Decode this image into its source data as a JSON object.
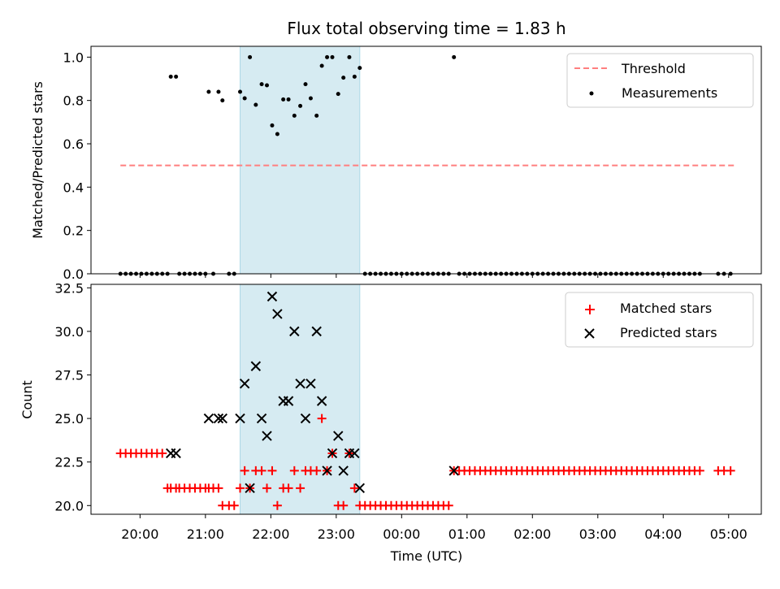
{
  "chart_data": [
    {
      "type": "scatter",
      "title": "Flux total observing time = 1.83 h",
      "xlabel": "",
      "ylabel": "Matched/Predicted stars",
      "xlim": [
        19.25,
        29.5
      ],
      "ylim": [
        0.0,
        1.05
      ],
      "yticks": [
        0.0,
        0.2,
        0.4,
        0.6,
        0.8,
        1.0
      ],
      "ytick_labels": [
        "0.0",
        "0.2",
        "0.4",
        "0.6",
        "0.8",
        "1.0"
      ],
      "shaded_span": [
        21.53,
        23.36
      ],
      "legend_position": "top-right",
      "threshold": {
        "name": "Threshold",
        "value": 0.5,
        "x_range": [
          19.7,
          29.1
        ],
        "color": "#ff7f7f"
      },
      "series": [
        {
          "name": "Measurements",
          "color": "#000000",
          "x": [
            19.7,
            19.78,
            19.86,
            19.94,
            20.02,
            20.1,
            20.18,
            20.26,
            20.34,
            20.42,
            20.47,
            20.55,
            20.6,
            20.68,
            20.76,
            20.84,
            20.92,
            21.0,
            21.05,
            21.12,
            21.2,
            21.26,
            21.36,
            21.44,
            21.53,
            21.6,
            21.68,
            21.77,
            21.86,
            21.94,
            22.02,
            22.1,
            22.19,
            22.27,
            22.36,
            22.45,
            22.53,
            22.61,
            22.7,
            22.78,
            22.86,
            22.94,
            23.03,
            23.11,
            23.2,
            23.28,
            23.36,
            23.44,
            23.52,
            23.6,
            23.68,
            23.76,
            23.84,
            23.92,
            24.0,
            24.08,
            24.16,
            24.24,
            24.32,
            24.4,
            24.48,
            24.56,
            24.64,
            24.72,
            24.8,
            24.88,
            24.96,
            25.04,
            25.12,
            25.2,
            25.28,
            25.36,
            25.44,
            25.52,
            25.6,
            25.68,
            25.76,
            25.84,
            25.92,
            26.0,
            26.08,
            26.16,
            26.24,
            26.32,
            26.4,
            26.48,
            26.56,
            26.64,
            26.72,
            26.8,
            26.88,
            26.96,
            27.04,
            27.12,
            27.2,
            27.28,
            27.36,
            27.44,
            27.52,
            27.6,
            27.68,
            27.76,
            27.84,
            27.92,
            28.0,
            28.08,
            28.16,
            28.24,
            28.32,
            28.4,
            28.48,
            28.56,
            28.84,
            28.93,
            29.03
          ],
          "y": [
            0,
            0,
            0,
            0,
            0,
            0,
            0,
            0,
            0,
            0,
            0.91,
            0.91,
            0,
            0,
            0,
            0,
            0,
            0,
            0.84,
            0,
            0.84,
            0.8,
            0,
            0,
            0.84,
            0.81,
            1.0,
            0.78,
            0.875,
            0.87,
            0.685,
            0.645,
            0.805,
            0.805,
            0.73,
            0.775,
            0.875,
            0.81,
            0.73,
            0.96,
            1.0,
            1.0,
            0.83,
            0.905,
            1.0,
            0.91,
            0.95,
            0,
            0,
            0,
            0,
            0,
            0,
            0,
            0,
            0,
            0,
            0,
            0,
            0,
            0,
            0,
            0,
            0,
            1.0,
            0,
            0,
            0,
            0,
            0,
            0,
            0,
            0,
            0,
            0,
            0,
            0,
            0,
            0,
            0,
            0,
            0,
            0,
            0,
            0,
            0,
            0,
            0,
            0,
            0,
            0,
            0,
            0,
            0,
            0,
            0,
            0,
            0,
            0,
            0,
            0,
            0,
            0,
            0,
            0,
            0,
            0,
            0,
            0,
            0,
            0,
            0,
            0,
            0,
            0
          ]
        }
      ]
    },
    {
      "type": "scatter",
      "title": "",
      "xlabel": "Time (UTC)",
      "ylabel": "Count",
      "xlim": [
        19.25,
        29.5
      ],
      "ylim": [
        19.5,
        32.7
      ],
      "xticks": [
        20,
        21,
        22,
        23,
        24,
        25,
        26,
        27,
        28,
        29
      ],
      "xtick_labels": [
        "20:00",
        "21:00",
        "22:00",
        "23:00",
        "00:00",
        "01:00",
        "02:00",
        "03:00",
        "04:00",
        "05:00"
      ],
      "yticks": [
        20.0,
        22.5,
        25.0,
        27.5,
        30.0,
        32.5
      ],
      "ytick_labels": [
        "20.0",
        "22.5",
        "25.0",
        "27.5",
        "30.0",
        "32.5"
      ],
      "shaded_span": [
        21.53,
        23.36
      ],
      "legend_position": "top-right",
      "series": [
        {
          "name": "Matched stars",
          "marker": "plus",
          "color": "#ff0000",
          "x": [
            19.7,
            19.78,
            19.86,
            19.94,
            20.02,
            20.1,
            20.18,
            20.26,
            20.34,
            20.42,
            20.47,
            20.55,
            20.6,
            20.68,
            20.76,
            20.84,
            20.92,
            21.0,
            21.05,
            21.12,
            21.2,
            21.26,
            21.36,
            21.44,
            21.53,
            21.6,
            21.68,
            21.77,
            21.86,
            21.94,
            22.02,
            22.1,
            22.19,
            22.27,
            22.36,
            22.45,
            22.53,
            22.61,
            22.7,
            22.78,
            22.86,
            22.94,
            23.03,
            23.11,
            23.2,
            23.28,
            23.36,
            23.44,
            23.52,
            23.6,
            23.68,
            23.76,
            23.84,
            23.92,
            24.0,
            24.08,
            24.16,
            24.24,
            24.32,
            24.4,
            24.48,
            24.56,
            24.64,
            24.72,
            24.8,
            24.88,
            24.96,
            25.04,
            25.12,
            25.2,
            25.28,
            25.36,
            25.44,
            25.52,
            25.6,
            25.68,
            25.76,
            25.84,
            25.92,
            26.0,
            26.08,
            26.16,
            26.24,
            26.32,
            26.4,
            26.48,
            26.56,
            26.64,
            26.72,
            26.8,
            26.88,
            26.96,
            27.04,
            27.12,
            27.2,
            27.28,
            27.36,
            27.44,
            27.52,
            27.6,
            27.68,
            27.76,
            27.84,
            27.92,
            28.0,
            28.08,
            28.16,
            28.24,
            28.32,
            28.4,
            28.48,
            28.56,
            28.84,
            28.93,
            29.03
          ],
          "y": [
            23,
            23,
            23,
            23,
            23,
            23,
            23,
            23,
            23,
            21,
            21,
            21,
            21,
            21,
            21,
            21,
            21,
            21,
            21,
            21,
            21,
            20,
            20,
            20,
            21,
            22,
            21,
            22,
            22,
            21,
            22,
            20,
            21,
            21,
            22,
            21,
            22,
            22,
            22,
            25,
            22,
            23,
            20,
            20,
            23,
            21,
            20,
            20,
            20,
            20,
            20,
            20,
            20,
            20,
            20,
            20,
            20,
            20,
            20,
            20,
            20,
            20,
            20,
            20,
            22,
            22,
            22,
            22,
            22,
            22,
            22,
            22,
            22,
            22,
            22,
            22,
            22,
            22,
            22,
            22,
            22,
            22,
            22,
            22,
            22,
            22,
            22,
            22,
            22,
            22,
            22,
            22,
            22,
            22,
            22,
            22,
            22,
            22,
            22,
            22,
            22,
            22,
            22,
            22,
            22,
            22,
            22,
            22,
            22,
            22,
            22,
            22,
            22,
            22,
            22
          ]
        },
        {
          "name": "Predicted stars",
          "marker": "x",
          "color": "#000000",
          "x": [
            20.47,
            20.55,
            21.05,
            21.2,
            21.26,
            21.53,
            21.6,
            21.68,
            21.77,
            21.86,
            21.94,
            22.02,
            22.1,
            22.19,
            22.27,
            22.36,
            22.45,
            22.53,
            22.61,
            22.7,
            22.78,
            22.86,
            22.94,
            23.03,
            23.11,
            23.2,
            23.28,
            23.36,
            24.8
          ],
          "y": [
            23,
            23,
            25,
            25,
            25,
            25,
            27,
            21,
            28,
            25,
            24,
            32,
            31,
            26,
            26,
            30,
            27,
            25,
            27,
            30,
            26,
            22,
            23,
            24,
            22,
            23,
            23,
            21,
            22
          ]
        }
      ]
    }
  ]
}
